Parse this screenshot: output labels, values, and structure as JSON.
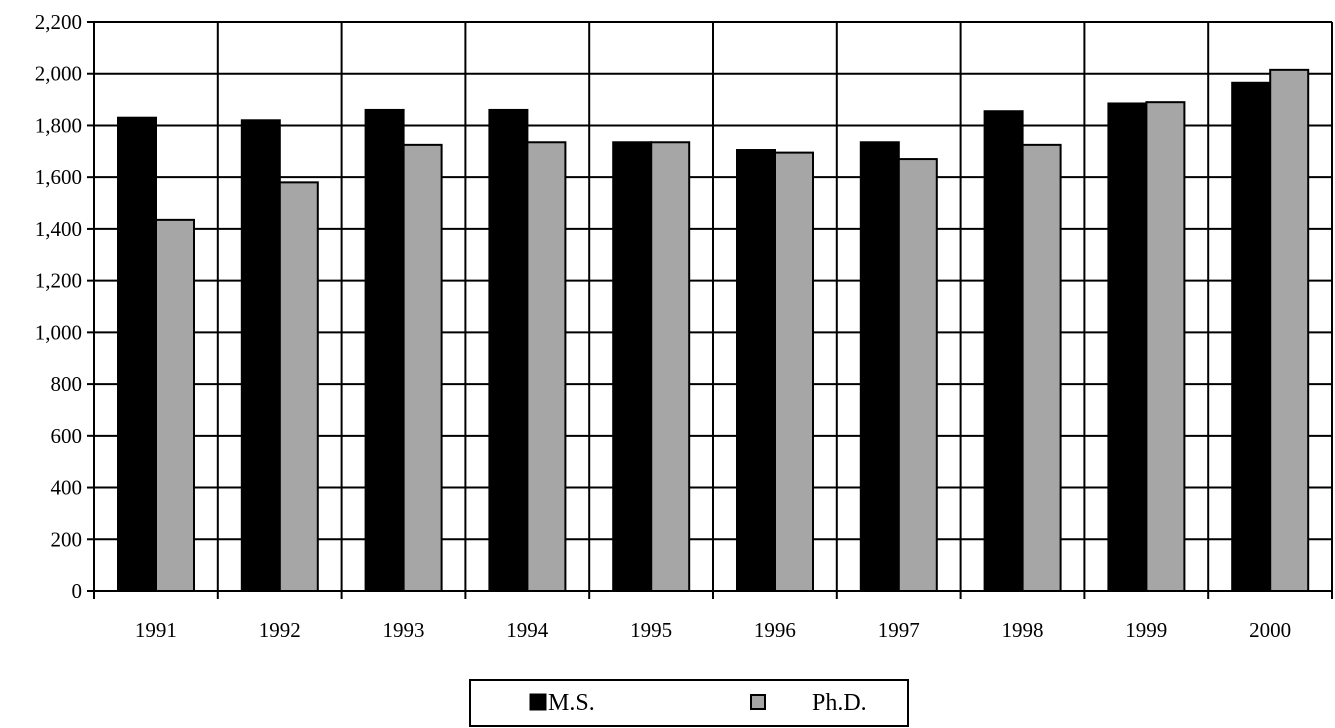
{
  "chart_data": {
    "type": "bar",
    "categories": [
      "1991",
      "1992",
      "1993",
      "1994",
      "1995",
      "1996",
      "1997",
      "1998",
      "1999",
      "2000"
    ],
    "series": [
      {
        "name": "M.S.",
        "color": "#000000",
        "values": [
          1830,
          1820,
          1860,
          1860,
          1735,
          1705,
          1735,
          1855,
          1885,
          1965
        ]
      },
      {
        "name": "Ph.D.",
        "color": "#a6a6a6",
        "values": [
          1435,
          1580,
          1725,
          1735,
          1735,
          1695,
          1670,
          1725,
          1890,
          2015
        ]
      }
    ],
    "ylim": [
      0,
      2200
    ],
    "y_ticks": [
      "0",
      "200",
      "400",
      "600",
      "800",
      "1,000",
      "1,200",
      "1,400",
      "1,600",
      "1,800",
      "2,000",
      "2,200"
    ],
    "y_tick_values": [
      0,
      200,
      400,
      600,
      800,
      1000,
      1200,
      1400,
      1600,
      1800,
      2000,
      2200
    ],
    "grid": true,
    "legend_position": "bottom-center",
    "title": "",
    "xlabel": "",
    "ylabel": ""
  }
}
